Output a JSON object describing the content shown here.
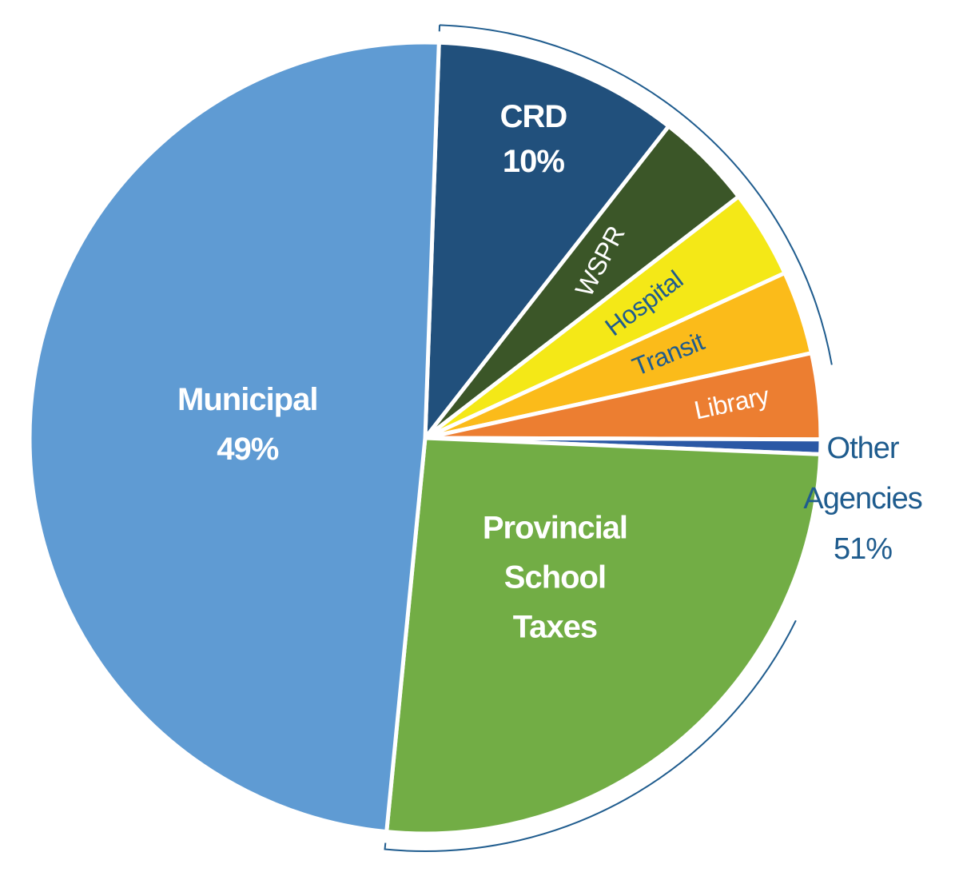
{
  "chart_data": {
    "type": "pie",
    "start_angle_deg": -88,
    "direction": "clockwise",
    "slices": [
      {
        "key": "crd",
        "label_lines": [
          "CRD",
          "10%"
        ],
        "value": 10,
        "color": "#21507c",
        "text_color": "#ffffff"
      },
      {
        "key": "wspr",
        "label_lines": [
          "WSPR"
        ],
        "value": 4,
        "color": "#3b5628",
        "text_color": "#ffffff"
      },
      {
        "key": "hospital",
        "label_lines": [
          "Hospital"
        ],
        "value": 3.6,
        "color": "#f4e817",
        "text_color": "#1f5c8e"
      },
      {
        "key": "transit",
        "label_lines": [
          "Transit"
        ],
        "value": 3.4,
        "color": "#fbbb1a",
        "text_color": "#1f5c8e"
      },
      {
        "key": "library",
        "label_lines": [
          "Library"
        ],
        "value": 3.5,
        "color": "#ec7e31",
        "text_color": "#ffffff"
      },
      {
        "key": "other",
        "label_lines": [],
        "value": 0.6,
        "color": "#2b58a5",
        "text_color": "#ffffff"
      },
      {
        "key": "provincial-school-taxes",
        "label_lines": [
          "Provincial",
          "School",
          "Taxes"
        ],
        "value": 25.9,
        "color": "#72ad45",
        "text_color": "#ffffff"
      },
      {
        "key": "municipal",
        "label_lines": [
          "Municipal",
          "49%"
        ],
        "value": 49,
        "color": "#5f9bd3",
        "text_color": "#ffffff"
      }
    ],
    "group_annotation": {
      "label_lines": [
        "Other",
        "Agencies",
        "51%"
      ],
      "value": 51,
      "color": "#1f5c8e"
    }
  }
}
